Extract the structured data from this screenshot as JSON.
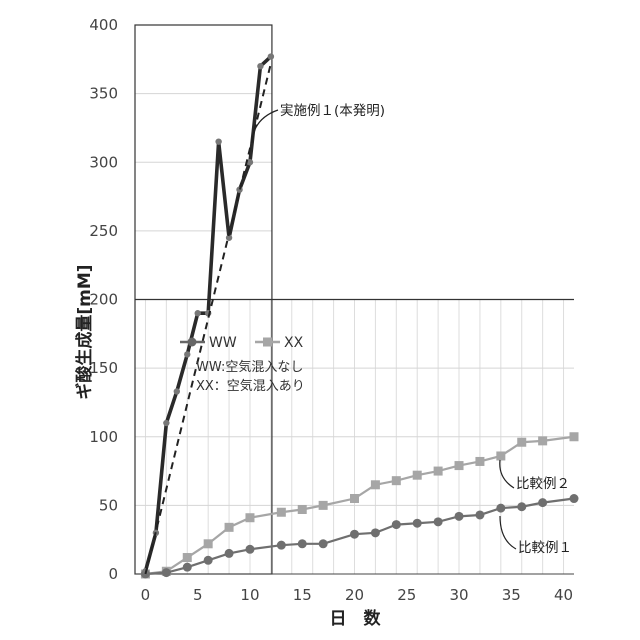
{
  "chart_data": {
    "type": "line",
    "xlabel": "日　数",
    "ylabel": "ギ酸生成量[mM]",
    "xlim": [
      -1,
      41
    ],
    "ylim": [
      0,
      400
    ],
    "x_ticks": [
      0,
      5,
      10,
      15,
      20,
      25,
      30,
      35,
      40
    ],
    "y_ticks": [
      0,
      50,
      100,
      150,
      200,
      250,
      300,
      350,
      400
    ],
    "grid": true,
    "legend": {
      "position": "upper-left",
      "entries": [
        {
          "label": "WW",
          "marker": "circle",
          "color": "#666666"
        },
        {
          "label": "XX",
          "marker": "square",
          "color": "#a6a6a6"
        }
      ],
      "notes": [
        "WW:空気混入なし",
        "XX：空気混入あり"
      ]
    },
    "series": [
      {
        "name": "実施例１(本発明)",
        "color": "#2a2a2a",
        "style": "solid-thick",
        "x": [
          0,
          1,
          2,
          3,
          4,
          5,
          6,
          7,
          8,
          9,
          10,
          11,
          12
        ],
        "y": [
          2,
          30,
          110,
          133,
          160,
          190,
          190,
          315,
          245,
          280,
          300,
          370,
          377
        ]
      },
      {
        "name": "比較例２",
        "color": "#a6a6a6",
        "marker": "square",
        "x": [
          0,
          2,
          4,
          6,
          8,
          10,
          13,
          15,
          17,
          20,
          22,
          24,
          26,
          28,
          30,
          32,
          34,
          36,
          38,
          41
        ],
        "y": [
          0,
          2,
          12,
          22,
          34,
          41,
          45,
          47,
          50,
          55,
          65,
          68,
          72,
          75,
          79,
          82,
          86,
          96,
          97,
          100
        ]
      },
      {
        "name": "比較例１",
        "color": "#6f6f6f",
        "marker": "circle",
        "x": [
          0,
          2,
          4,
          6,
          8,
          10,
          13,
          15,
          17,
          20,
          22,
          24,
          26,
          28,
          30,
          32,
          34,
          36,
          38,
          41
        ],
        "y": [
          0,
          1,
          5,
          10,
          15,
          18,
          21,
          22,
          22,
          29,
          30,
          36,
          37,
          38,
          42,
          43,
          48,
          49,
          52,
          55
        ]
      }
    ],
    "trendline": {
      "series": "実施例１(本発明)",
      "style": "dashed",
      "x": [
        0,
        12
      ],
      "y": [
        0,
        372
      ]
    },
    "annotations": [
      {
        "text": "実施例１(本発明)",
        "target": "実施例１(本発明)"
      },
      {
        "text": "比較例２",
        "target": "比較例２"
      },
      {
        "text": "比較例１",
        "target": "比較例１"
      }
    ]
  }
}
